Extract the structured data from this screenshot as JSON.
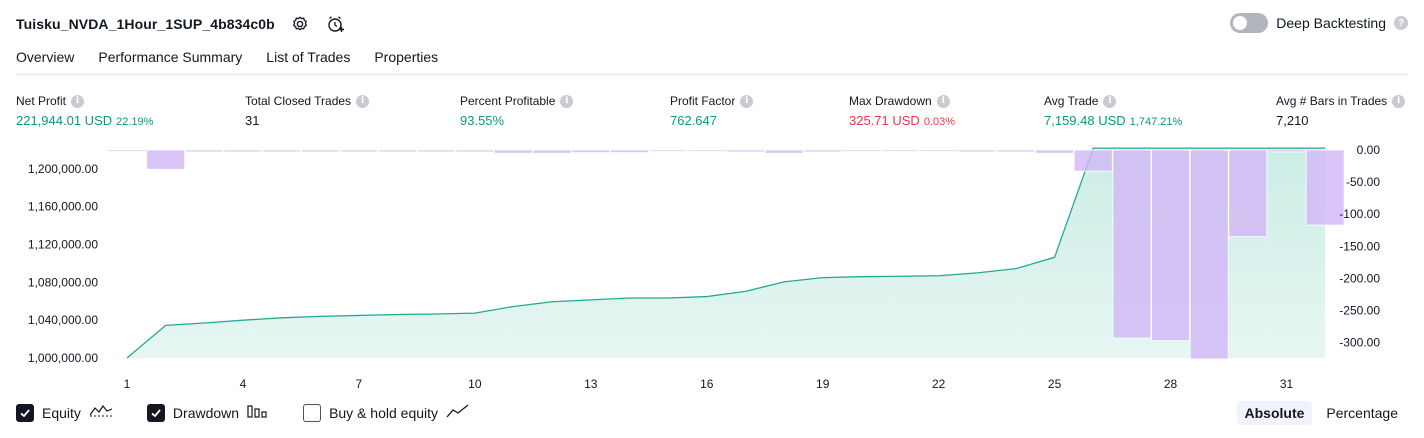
{
  "header": {
    "strategy_name": "Tuisku_NVDA_1Hour_1SUP_4b834c0b",
    "settings_icon": "gear-icon",
    "alert_icon": "add-alert-icon"
  },
  "deep_backtesting": {
    "label": "Deep Backtesting",
    "enabled": false
  },
  "tabs": [
    {
      "label": "Overview",
      "active": true
    },
    {
      "label": "Performance Summary",
      "active": false
    },
    {
      "label": "List of Trades",
      "active": false
    },
    {
      "label": "Properties",
      "active": false
    }
  ],
  "metrics": {
    "net_profit": {
      "label": "Net Profit",
      "value": "221,944.01 USD",
      "pct": "22.19%"
    },
    "total_closed_trades": {
      "label": "Total Closed Trades",
      "value": "31"
    },
    "percent_profitable": {
      "label": "Percent Profitable",
      "value": "93.55%"
    },
    "profit_factor": {
      "label": "Profit Factor",
      "value": "762.647"
    },
    "max_drawdown": {
      "label": "Max Drawdown",
      "value": "325.71 USD",
      "pct": "0.03%"
    },
    "avg_trade": {
      "label": "Avg Trade",
      "value": "7,159.48 USD",
      "pct": "1,747.21%"
    },
    "avg_bars": {
      "label": "Avg # Bars in Trades",
      "value": "7,210"
    }
  },
  "colors": {
    "equity_line": "#22ab94",
    "equity_fill": "#c9ece4",
    "drawdown_bar": "#d1b8f5",
    "positive": "#089981",
    "negative": "#f23645"
  },
  "chart_data": {
    "type": "area",
    "x": [
      1,
      2,
      3,
      4,
      5,
      6,
      7,
      8,
      9,
      10,
      11,
      12,
      13,
      14,
      15,
      16,
      17,
      18,
      19,
      20,
      21,
      22,
      23,
      24,
      25,
      26,
      27,
      28,
      29,
      30,
      31,
      32
    ],
    "x_ticks": [
      "1",
      "4",
      "7",
      "10",
      "13",
      "16",
      "19",
      "22",
      "25",
      "28",
      "31"
    ],
    "equity": {
      "name": "Equity",
      "values": [
        1000000,
        1034500,
        1037000,
        1040000,
        1042500,
        1044000,
        1045000,
        1046000,
        1046500,
        1047500,
        1054500,
        1059500,
        1061500,
        1063500,
        1063500,
        1065000,
        1070500,
        1080500,
        1085000,
        1086000,
        1086500,
        1087000,
        1090000,
        1094500,
        1106500,
        1221944,
        1221944,
        1221944,
        1221944,
        1221944,
        1221944,
        1221944
      ]
    },
    "drawdown": {
      "name": "Drawdown",
      "values": [
        0,
        -30,
        -3,
        -3,
        -3,
        -3,
        -3,
        -3,
        -3,
        -3,
        -5,
        -5,
        -4,
        -4,
        0,
        0,
        -3,
        -5,
        -3,
        0,
        0,
        0,
        -3,
        -3,
        -5,
        -33,
        -293,
        -297,
        -325.71,
        -135,
        -3,
        -117
      ]
    },
    "y_left_ticks": [
      "1,200,000.00",
      "1,160,000.00",
      "1,120,000.00",
      "1,080,000.00",
      "1,040,000.00",
      "1,000,000.00"
    ],
    "y_left_range": [
      1000000,
      1220000
    ],
    "y_right_ticks": [
      "0.00",
      "-50.00",
      "-100.00",
      "-150.00",
      "-200.00",
      "-250.00",
      "-300.00"
    ],
    "y_right_range": [
      -325.71,
      0
    ]
  },
  "legend": {
    "equity": {
      "label": "Equity",
      "checked": true
    },
    "drawdown": {
      "label": "Drawdown",
      "checked": true
    },
    "buy_hold": {
      "label": "Buy & hold equity",
      "checked": false
    }
  },
  "mode": {
    "absolute": "Absolute",
    "percentage": "Percentage",
    "selected": "Absolute"
  }
}
